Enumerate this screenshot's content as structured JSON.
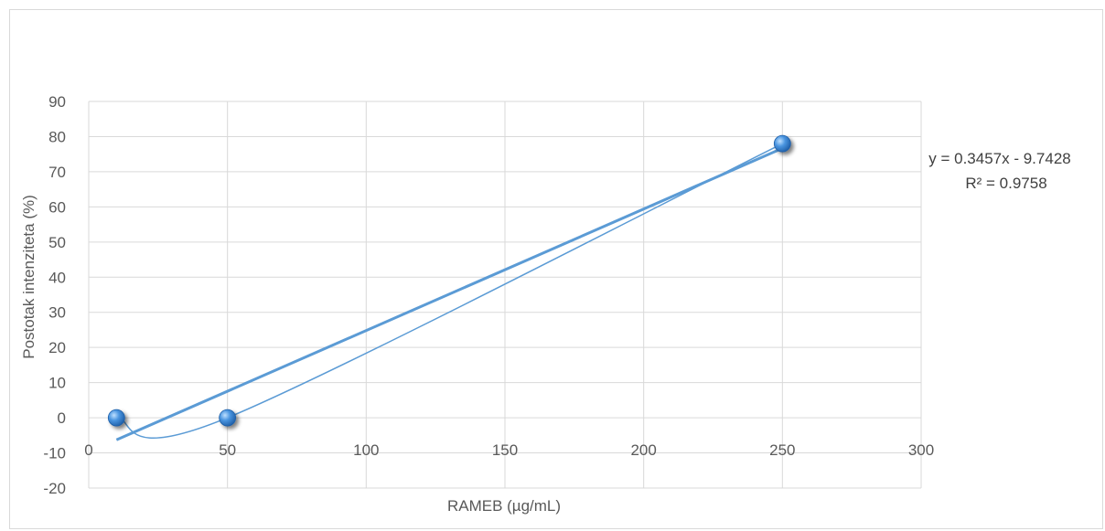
{
  "chart_data": {
    "type": "scatter",
    "title": "",
    "xlabel": "RAMEB (µg/mL)",
    "ylabel": "Postotak intenziteta (%)",
    "xlim": [
      0,
      300
    ],
    "ylim": [
      -20,
      90
    ],
    "x_ticks": [
      0,
      50,
      100,
      150,
      200,
      250,
      300
    ],
    "y_ticks": [
      -20,
      -10,
      0,
      10,
      20,
      30,
      40,
      50,
      60,
      70,
      80,
      90
    ],
    "x_tick_labels": [
      "0",
      "50",
      "100",
      "150",
      "200",
      "250",
      "300"
    ],
    "y_tick_labels": [
      "-20",
      "-10",
      "0",
      "10",
      "20",
      "30",
      "40",
      "50",
      "60",
      "70",
      "80",
      "90"
    ],
    "grid": true,
    "points": [
      {
        "x": 10,
        "y": 0
      },
      {
        "x": 50,
        "y": 0
      },
      {
        "x": 250,
        "y": 78
      }
    ],
    "trendline": {
      "type": "linear",
      "slope": 0.3457,
      "intercept": -9.7428,
      "x_range": [
        10,
        250
      ],
      "equation_label": "y = 0.3457x - 9.7428",
      "r2_label": "R² = 0.9758"
    },
    "smooth_line": true,
    "colors": {
      "marker": "#3a86d4",
      "trendline": "#5b9bd5",
      "smooth_line": "#5b9bd5",
      "grid": "#d9d9d9",
      "text": "#595959"
    }
  }
}
